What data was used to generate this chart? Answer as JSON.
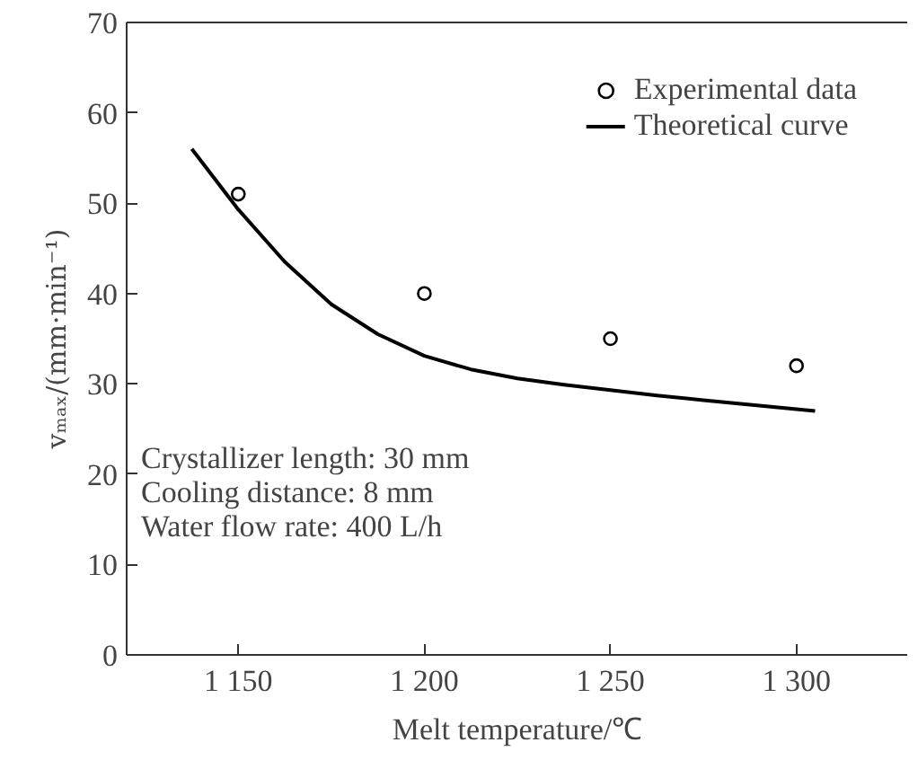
{
  "chart_data": {
    "type": "scatter",
    "xlabel": "Melt temperature/℃",
    "ylabel": "vₘₐₓ/(mm·min⁻¹)",
    "xlim": [
      1120,
      1330
    ],
    "ylim": [
      0,
      70
    ],
    "xticks": [
      {
        "value": 1150,
        "label": "1 150"
      },
      {
        "value": 1200,
        "label": "1 200"
      },
      {
        "value": 1250,
        "label": "1 250"
      },
      {
        "value": 1300,
        "label": "1 300"
      }
    ],
    "yticks": [
      0,
      10,
      20,
      30,
      40,
      50,
      60,
      70
    ],
    "grid": false,
    "legend": "top right",
    "series": [
      {
        "name": "Experimental data",
        "marker": "circle",
        "color": "#000000",
        "x": [
          1150,
          1200,
          1250,
          1300
        ],
        "values": [
          51,
          40,
          35,
          32
        ]
      },
      {
        "name": "Theoretical curve",
        "type": "line",
        "line_style": "solid",
        "color": "#000000",
        "x": [
          1137.5,
          1150,
          1162.5,
          1175,
          1187.5,
          1200,
          1212.5,
          1225,
          1237.5,
          1250,
          1262.5,
          1275,
          1287.5,
          1300,
          1305
        ],
        "values": [
          56,
          49.3,
          43.5,
          38.8,
          35.5,
          33.1,
          31.6,
          30.6,
          29.9,
          29.3,
          28.7,
          28.2,
          27.7,
          27.2,
          27
        ]
      }
    ],
    "annotations": [
      "Crystallizer length: 30 mm",
      "Cooling distance: 8 mm",
      "Water flow rate: 400 L/h"
    ]
  }
}
